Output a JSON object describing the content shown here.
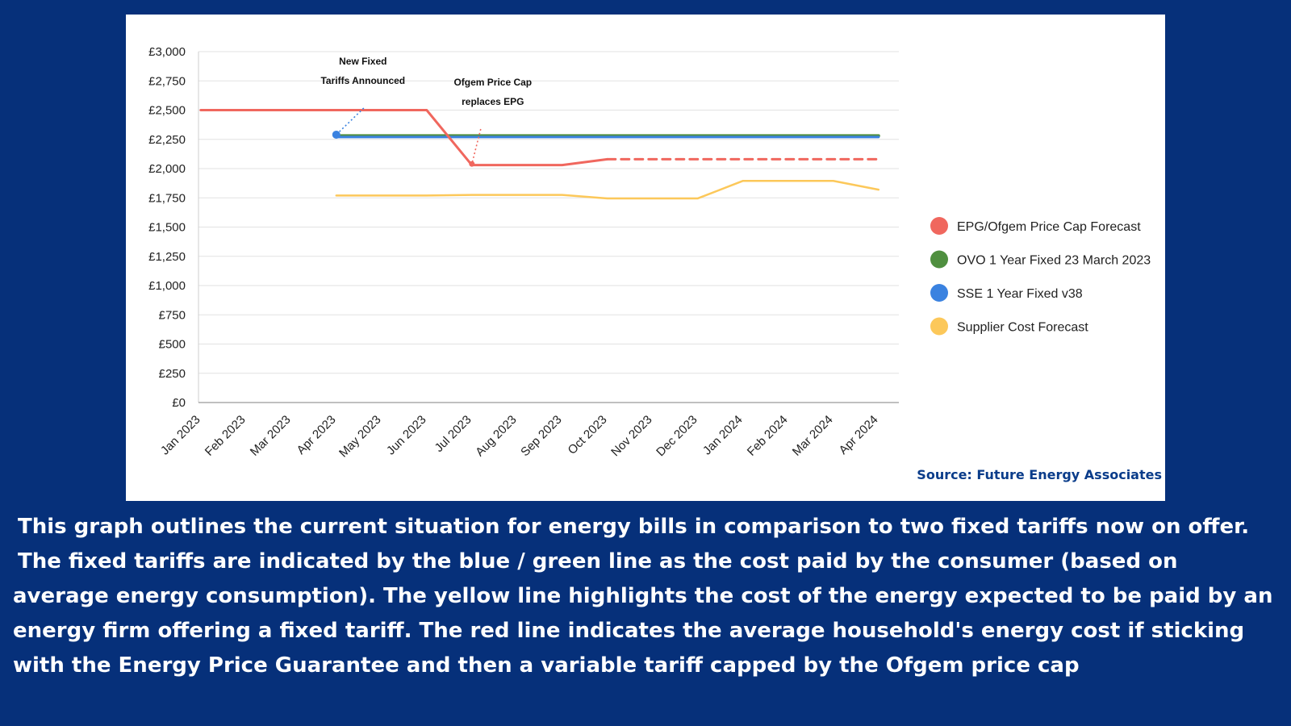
{
  "chart_data": {
    "type": "line",
    "categories": [
      "Jan 2023",
      "Feb 2023",
      "Mar 2023",
      "Apr 2023",
      "May 2023",
      "Jun 2023",
      "Jul 2023",
      "Aug 2023",
      "Sep 2023",
      "Oct 2023",
      "Nov 2023",
      "Dec 2023",
      "Jan 2024",
      "Feb 2024",
      "Mar 2024",
      "Apr 2024"
    ],
    "yticks": [
      "£3,000",
      "£2,750",
      "£2,500",
      "£2,250",
      "£2,000",
      "£1,750",
      "£1,500",
      "£1,250",
      "£1,000",
      "£750",
      "£500",
      "£250",
      "£0"
    ],
    "ylim": [
      0,
      3000
    ],
    "grid": true,
    "legend_position": "right",
    "series": [
      {
        "name": "EPG/Ofgem Price Cap Forecast",
        "color": "#f0675e",
        "x": [
          0,
          1,
          2,
          3,
          4,
          5,
          6,
          7,
          8,
          9,
          10,
          11,
          12,
          13,
          14,
          15
        ],
        "values": [
          2500,
          2500,
          2500,
          2500,
          2500,
          2500,
          2030,
          2030,
          2030,
          2080,
          2080,
          2080,
          2080,
          2080,
          2080,
          2080
        ],
        "forecast_from_index": 9
      },
      {
        "name": "OVO 1 Year Fixed 23 March 2023",
        "color": "#4f8f3f",
        "x": [
          3,
          15
        ],
        "values": [
          2280,
          2280
        ]
      },
      {
        "name": "SSE 1 Year Fixed v38",
        "color": "#3a82e0",
        "x": [
          3,
          15
        ],
        "values": [
          2270,
          2270
        ]
      },
      {
        "name": "Supplier Cost Forecast",
        "color": "#fcc85a",
        "x": [
          3,
          4,
          5,
          6,
          7,
          8,
          9,
          10,
          11,
          12,
          13,
          14,
          15
        ],
        "values": [
          1770,
          1770,
          1770,
          1775,
          1775,
          1775,
          1745,
          1745,
          1745,
          1895,
          1895,
          1895,
          1820
        ]
      }
    ],
    "annotations": [
      {
        "lines": [
          "New Fixed",
          "Tariffs Announced"
        ],
        "color": "#3a82e0",
        "point": {
          "x": 3,
          "y": 2290
        }
      },
      {
        "lines": [
          "Ofgem Price Cap",
          "replaces EPG"
        ],
        "color": "#f0675e",
        "point": {
          "x": 6,
          "y": 2040
        }
      }
    ],
    "source": "Source: Future Energy Associates"
  },
  "caption": {
    "p1": "This graph outlines the current situation for energy bills in comparison to two fixed tariffs now on offer.",
    "p2_first": "The fixed tariffs are indicated by the blue / green line as the cost paid by the consumer (based on",
    "p2_rest": "average energy consumption). The yellow line highlights the cost of the energy expected to be paid by an energy firm offering a fixed tariff. The red line indicates the average household's energy cost if sticking with the Energy Price Guarantee and then a variable tariff capped by the Ofgem price cap"
  }
}
